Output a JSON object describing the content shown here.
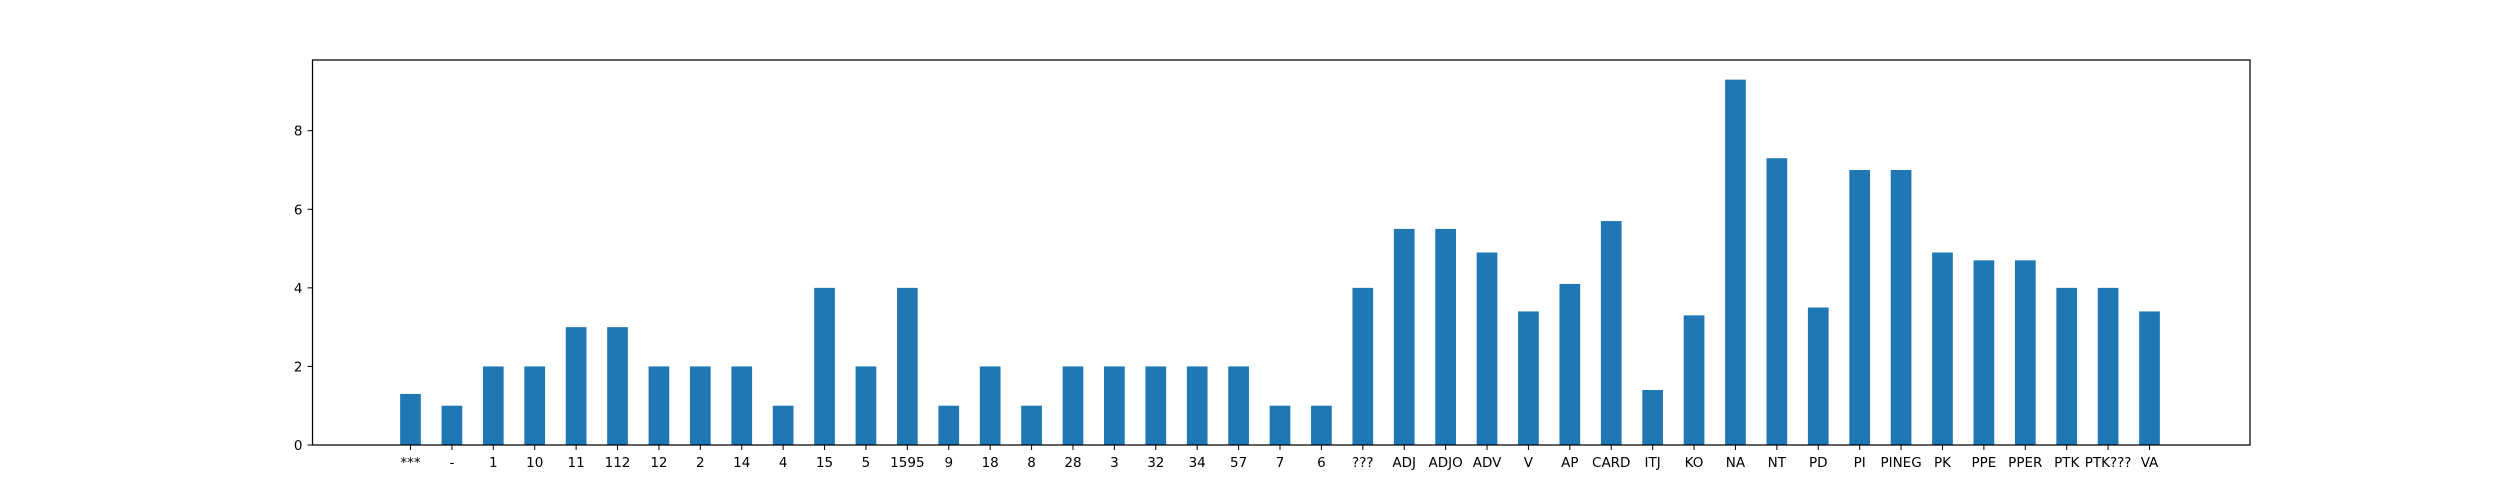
{
  "chart_data": {
    "type": "bar",
    "title": "",
    "xlabel": "",
    "ylabel": "",
    "grid": false,
    "ylim": [
      0,
      9.8
    ],
    "yticks": [
      0,
      2,
      4,
      6,
      8
    ],
    "color": "#1f77b4",
    "categories": [
      "***",
      "-",
      "1",
      "10",
      "11",
      "112",
      "12",
      "2",
      "14",
      "4",
      "15",
      "5",
      "1595",
      "9",
      "18",
      "8",
      "28",
      "3",
      "32",
      "34",
      "57",
      "7",
      "6",
      "???",
      "ADJ",
      "ADJO",
      "ADV",
      "V",
      "AP",
      "CARD",
      "ITJ",
      "KO",
      "NA",
      "NT",
      "PD",
      "PI",
      "PINEG",
      "PK",
      "PPE",
      "PPER",
      "PTK",
      "PTK???",
      "VA"
    ],
    "values": [
      1.3,
      1,
      2,
      2,
      3,
      3,
      2,
      2,
      2,
      1,
      4,
      2,
      4,
      1,
      2,
      1,
      2,
      2,
      2,
      2,
      2,
      1,
      1,
      4,
      5.5,
      5.5,
      4.9,
      3.4,
      4.1,
      5.7,
      1.4,
      3.3,
      9.3,
      7.3,
      3.5,
      7,
      7,
      4.9,
      4.7,
      4.7,
      4,
      4,
      3.4
    ]
  }
}
